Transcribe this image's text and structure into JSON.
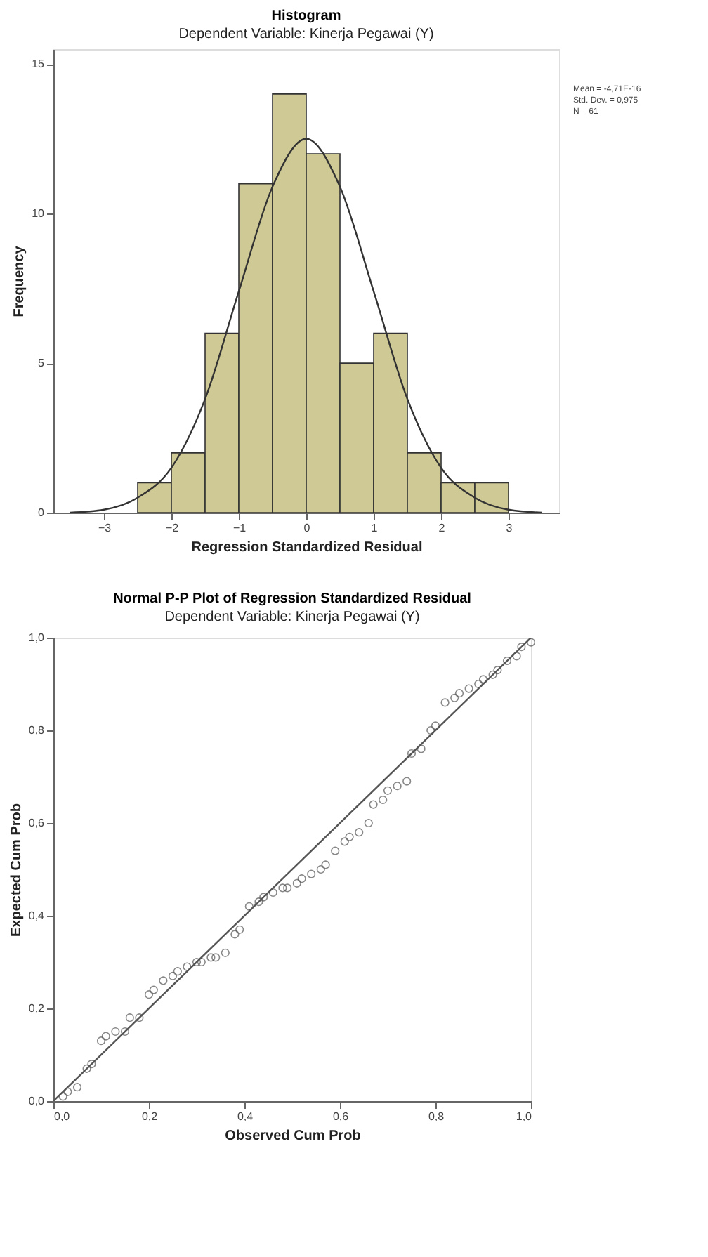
{
  "chart_data": [
    {
      "type": "histogram",
      "title": "Histogram",
      "subtitle": "Dependent Variable: Kinerja Pegawai (Y)",
      "xlabel": "Regression Standardized Residual",
      "ylabel": "Frequency",
      "bins": [
        -2.5,
        -2.0,
        -1.5,
        -1.0,
        -0.5,
        0.0,
        0.5,
        1.0,
        1.5,
        2.0,
        2.5,
        3.0
      ],
      "values": [
        1,
        2,
        6,
        11,
        14,
        12,
        5,
        6,
        2,
        1,
        1
      ],
      "color": "#cfc995",
      "series": [
        {
          "type": "line",
          "color": "#333333",
          "line_style": "solid",
          "x": [
            -3.5,
            -3.0,
            -2.5,
            -2.0,
            -1.5,
            -1.0,
            -0.5,
            0.0,
            0.5,
            1.0,
            1.5,
            2.0,
            2.5,
            3.0,
            3.5
          ],
          "values": [
            0.0,
            0.1,
            0.5,
            1.5,
            3.8,
            7.4,
            10.9,
            12.5,
            10.9,
            7.4,
            3.8,
            1.5,
            0.5,
            0.1,
            0.0
          ]
        }
      ],
      "xlim": [
        -3.75,
        3.75
      ],
      "xticks": [
        -3,
        -2,
        -1,
        0,
        1,
        2,
        3
      ],
      "ylim": [
        0,
        15.5
      ],
      "yticks": [
        0,
        5,
        10,
        15
      ],
      "grid": false,
      "annotations": [
        "Mean = -4,71E-16",
        "Std. Dev. = 0,975",
        "N = 61"
      ]
    },
    {
      "type": "scatter",
      "title": "Normal P-P Plot of Regression Standardized Residual",
      "subtitle": "Dependent Variable: Kinerja Pegawai (Y)",
      "xlabel": "Observed Cum Prob",
      "ylabel": "Expected Cum Prob",
      "series": [
        {
          "type": "scatter",
          "color": "#555555",
          "marker": "circle",
          "x": [
            0.02,
            0.03,
            0.05,
            0.07,
            0.08,
            0.1,
            0.11,
            0.13,
            0.15,
            0.16,
            0.18,
            0.2,
            0.21,
            0.23,
            0.25,
            0.26,
            0.28,
            0.3,
            0.31,
            0.33,
            0.34,
            0.36,
            0.38,
            0.39,
            0.41,
            0.43,
            0.44,
            0.46,
            0.48,
            0.49,
            0.51,
            0.52,
            0.54,
            0.56,
            0.57,
            0.59,
            0.61,
            0.62,
            0.64,
            0.66,
            0.67,
            0.69,
            0.7,
            0.72,
            0.74,
            0.75,
            0.77,
            0.79,
            0.8,
            0.82,
            0.84,
            0.85,
            0.87,
            0.89,
            0.9,
            0.92,
            0.93,
            0.95,
            0.97,
            0.98,
            1.0
          ],
          "values": [
            0.01,
            0.02,
            0.03,
            0.07,
            0.08,
            0.13,
            0.14,
            0.15,
            0.15,
            0.18,
            0.18,
            0.23,
            0.24,
            0.26,
            0.27,
            0.28,
            0.29,
            0.3,
            0.3,
            0.31,
            0.31,
            0.32,
            0.36,
            0.37,
            0.42,
            0.43,
            0.44,
            0.45,
            0.46,
            0.46,
            0.47,
            0.48,
            0.49,
            0.5,
            0.51,
            0.54,
            0.56,
            0.57,
            0.58,
            0.6,
            0.64,
            0.65,
            0.67,
            0.68,
            0.69,
            0.75,
            0.76,
            0.8,
            0.81,
            0.86,
            0.87,
            0.88,
            0.89,
            0.9,
            0.91,
            0.92,
            0.93,
            0.95,
            0.96,
            0.98,
            0.99
          ]
        },
        {
          "type": "line",
          "color": "#555555",
          "line_style": "solid",
          "x": [
            0.0,
            1.0
          ],
          "values": [
            0.0,
            1.0
          ]
        }
      ],
      "xlim": [
        0,
        1
      ],
      "xticks": [
        {
          "value": 0,
          "label": "0,0"
        },
        {
          "value": 0.2,
          "label": "0,2"
        },
        {
          "value": 0.4,
          "label": "0,4"
        },
        {
          "value": 0.6,
          "label": "0,6"
        },
        {
          "value": 0.8,
          "label": "0,8"
        },
        {
          "value": 1,
          "label": "1,0"
        }
      ],
      "ylim": [
        0,
        1
      ],
      "yticks": [
        {
          "value": 0,
          "label": "0,0"
        },
        {
          "value": 0.2,
          "label": "0,2"
        },
        {
          "value": 0.4,
          "label": "0,4"
        },
        {
          "value": 0.6,
          "label": "0,6"
        },
        {
          "value": 0.8,
          "label": "0,8"
        },
        {
          "value": 1,
          "label": "1,0"
        }
      ],
      "grid": false
    }
  ]
}
